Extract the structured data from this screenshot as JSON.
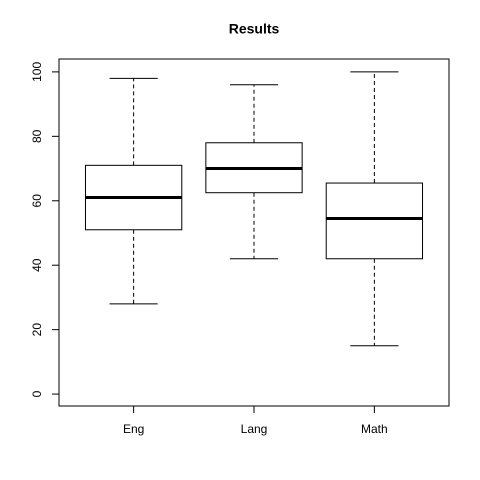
{
  "chart_data": {
    "type": "box",
    "title": "Results",
    "categories": [
      "Eng",
      "Lang",
      "Math"
    ],
    "boxes": [
      {
        "min": 28,
        "q1": 51,
        "median": 61,
        "q3": 71,
        "max": 98
      },
      {
        "min": 42,
        "q1": 62.5,
        "median": 70,
        "q3": 78,
        "max": 96
      },
      {
        "min": 15,
        "q1": 42,
        "median": 54.5,
        "q3": 65.5,
        "max": 100
      }
    ],
    "color": "#000000",
    "ylim": [
      -3.7,
      104
    ],
    "yticks": [
      0,
      20,
      40,
      60,
      80,
      100
    ]
  }
}
